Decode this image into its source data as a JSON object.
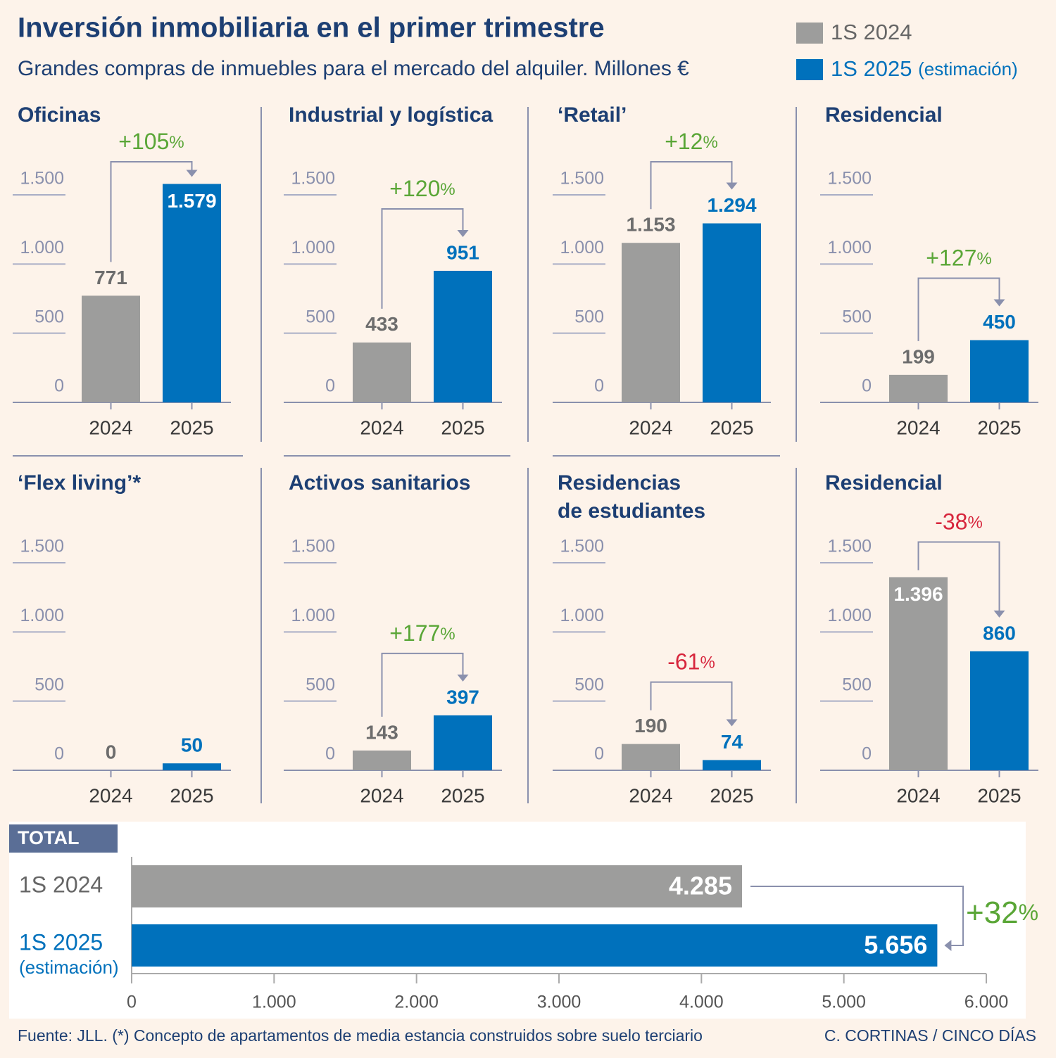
{
  "header": {
    "title": "Inversión inmobiliaria en el primer trimestre",
    "subtitle": "Grandes compras de inmuebles para el mercado del alquiler. Millones €",
    "legend": [
      {
        "name": "1S 2024",
        "color": "#9d9d9c"
      },
      {
        "name": "1S 2025",
        "note": "(estimación)",
        "color": "#0071bc"
      }
    ]
  },
  "chart_data": [
    {
      "type": "bar",
      "title": [
        "Oficinas"
      ],
      "categories": [
        "2024",
        "2025"
      ],
      "values": [
        771,
        1579
      ],
      "value_labels": [
        "771",
        "1.579"
      ],
      "colors": [
        "#9d9d9c",
        "#0071bc"
      ],
      "ylim": [
        0,
        1500
      ],
      "yticks": [
        0,
        {
          "value": 500,
          "label": "500"
        },
        {
          "value": 1000,
          "label": "1.000"
        },
        {
          "value": 1500,
          "label": "1.500"
        }
      ],
      "change": "+105%",
      "change_color": "#5aa637"
    },
    {
      "type": "bar",
      "title": [
        "Industrial y logística"
      ],
      "categories": [
        "2024",
        "2025"
      ],
      "values": [
        433,
        951
      ],
      "value_labels": [
        "433",
        "951"
      ],
      "colors": [
        "#9d9d9c",
        "#0071bc"
      ],
      "ylim": [
        0,
        1500
      ],
      "yticks": [
        0,
        {
          "value": 500,
          "label": "500"
        },
        {
          "value": 1000,
          "label": "1.000"
        },
        {
          "value": 1500,
          "label": "1.500"
        }
      ],
      "change": "+120%",
      "change_color": "#5aa637"
    },
    {
      "type": "bar",
      "title": [
        "‘Retail’"
      ],
      "categories": [
        "2024",
        "2025"
      ],
      "values": [
        1153,
        1294
      ],
      "value_labels": [
        "1.153",
        "1.294"
      ],
      "colors": [
        "#9d9d9c",
        "#0071bc"
      ],
      "ylim": [
        0,
        1500
      ],
      "yticks": [
        0,
        {
          "value": 500,
          "label": "500"
        },
        {
          "value": 1000,
          "label": "1.000"
        },
        {
          "value": 1500,
          "label": "1.500"
        }
      ],
      "change": "+12%",
      "change_color": "#5aa637"
    },
    {
      "type": "bar",
      "title": [
        "Residencial"
      ],
      "categories": [
        "2024",
        "2025"
      ],
      "values": [
        199,
        450
      ],
      "value_labels": [
        "199",
        "450"
      ],
      "colors": [
        "#9d9d9c",
        "#0071bc"
      ],
      "ylim": [
        0,
        1500
      ],
      "yticks": [
        0,
        {
          "value": 500,
          "label": "500"
        },
        {
          "value": 1000,
          "label": "1.000"
        },
        {
          "value": 1500,
          "label": "1.500"
        }
      ],
      "change": "+127%",
      "change_color": "#5aa637"
    },
    {
      "type": "bar",
      "title": [
        "‘Flex living’*"
      ],
      "categories": [
        "2024",
        "2025"
      ],
      "values": [
        0,
        50
      ],
      "value_labels": [
        "0",
        "50"
      ],
      "colors": [
        "#9d9d9c",
        "#0071bc"
      ],
      "ylim": [
        0,
        1500
      ],
      "yticks": [
        0,
        {
          "value": 500,
          "label": "500"
        },
        {
          "value": 1000,
          "label": "1.000"
        },
        {
          "value": 1500,
          "label": "1.500"
        }
      ]
    },
    {
      "type": "bar",
      "title": [
        "Activos sanitarios"
      ],
      "categories": [
        "2024",
        "2025"
      ],
      "values": [
        143,
        397
      ],
      "value_labels": [
        "143",
        "397"
      ],
      "colors": [
        "#9d9d9c",
        "#0071bc"
      ],
      "ylim": [
        0,
        1500
      ],
      "yticks": [
        0,
        {
          "value": 500,
          "label": "500"
        },
        {
          "value": 1000,
          "label": "1.000"
        },
        {
          "value": 1500,
          "label": "1.500"
        }
      ],
      "change": "+177%",
      "change_color": "#5aa637"
    },
    {
      "type": "bar",
      "title": [
        "Residencias",
        "de estudiantes"
      ],
      "categories": [
        "2024",
        "2025"
      ],
      "values": [
        190,
        74
      ],
      "value_labels": [
        "190",
        "74"
      ],
      "colors": [
        "#9d9d9c",
        "#0071bc"
      ],
      "ylim": [
        0,
        1500
      ],
      "yticks": [
        0,
        {
          "value": 500,
          "label": "500"
        },
        {
          "value": 1000,
          "label": "1.000"
        },
        {
          "value": 1500,
          "label": "1.500"
        }
      ],
      "change": "-61%",
      "change_color": "#d7263d"
    },
    {
      "type": "bar",
      "title": [
        "Residencial"
      ],
      "categories": [
        "2024",
        "2025"
      ],
      "values": [
        1396,
        860
      ],
      "value_labels": [
        "1.396",
        "860"
      ],
      "colors": [
        "#9d9d9c",
        "#0071bc"
      ],
      "ylim": [
        0,
        1500
      ],
      "yticks": [
        0,
        {
          "value": 500,
          "label": "500"
        },
        {
          "value": 1000,
          "label": "1.000"
        },
        {
          "value": 1500,
          "label": "1.500"
        }
      ],
      "change": "-38%",
      "change_color": "#d7263d"
    },
    {
      "type": "barh",
      "title": [
        "TOTAL"
      ],
      "categories": [
        "1S 2024",
        "1S 2025"
      ],
      "category_note": "(estimación)",
      "values": [
        4285,
        5656
      ],
      "value_labels": [
        "4.285",
        "5.656"
      ],
      "colors": [
        "#9d9d9c",
        "#0071bc"
      ],
      "xlim": [
        0,
        6000
      ],
      "xticks": [
        0,
        {
          "value": 1000,
          "label": "1.000"
        },
        {
          "value": 2000,
          "label": "2.000"
        },
        {
          "value": 3000,
          "label": "3.000"
        },
        {
          "value": 4000,
          "label": "4.000"
        },
        {
          "value": 5000,
          "label": "5.000"
        },
        {
          "value": 6000,
          "label": "6.000"
        }
      ],
      "change": "+32%",
      "change_color": "#5aa637"
    }
  ],
  "footer": {
    "source": "Fuente: JLL. (*) Concepto de apartamentos de media estancia construidos sobre suelo terciario",
    "credit": "C. CORTINAS / CINCO DÍAS"
  }
}
